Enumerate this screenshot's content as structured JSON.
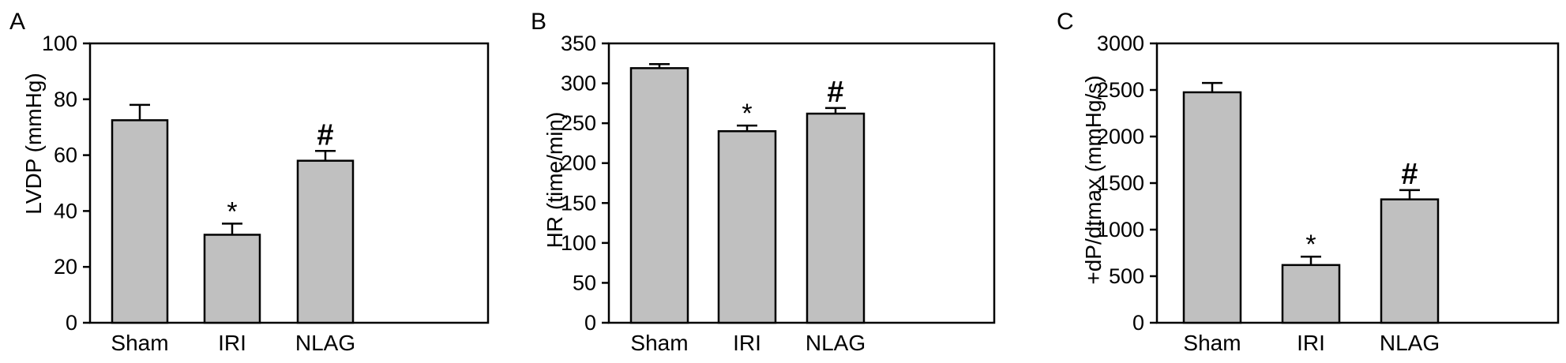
{
  "colors": {
    "bar_fill": "#c0c0c0",
    "stroke": "#000000",
    "background": "#ffffff"
  },
  "chart_data": [
    {
      "type": "bar",
      "panel_label": "A",
      "categories": [
        "Sham",
        "IRI",
        "NLAG"
      ],
      "values": [
        72.5,
        31.5,
        58
      ],
      "error": [
        5.5,
        4.0,
        3.5
      ],
      "significance": [
        "",
        "*",
        "#"
      ],
      "xlabel": "",
      "ylabel": "LVDP (mmHg)",
      "ylim": [
        0,
        100
      ],
      "yticks": [
        0,
        20,
        40,
        60,
        80,
        100
      ],
      "ytick_labels": [
        "0",
        "20",
        "40",
        "60",
        "80",
        "100"
      ],
      "grid": false,
      "legend": "none"
    },
    {
      "type": "bar",
      "panel_label": "B",
      "categories": [
        "Sham",
        "IRI",
        "NLAG"
      ],
      "values": [
        319,
        240,
        262
      ],
      "error": [
        5,
        7,
        7
      ],
      "significance": [
        "",
        "*",
        "#"
      ],
      "xlabel": "",
      "ylabel": "HR (time/min)",
      "ylim": [
        0,
        350
      ],
      "yticks": [
        0,
        50,
        100,
        150,
        200,
        250,
        300,
        350
      ],
      "ytick_labels": [
        "0",
        "50",
        "100",
        "150",
        "200",
        "250",
        "300",
        "350"
      ],
      "grid": false,
      "legend": "none"
    },
    {
      "type": "bar",
      "panel_label": "C",
      "categories": [
        "Sham",
        "IRI",
        "NLAG"
      ],
      "values": [
        2475,
        620,
        1325
      ],
      "error": [
        100,
        90,
        100
      ],
      "significance": [
        "",
        "*",
        "#"
      ],
      "xlabel": "",
      "ylabel": "+dP/dtmax (mmHg/s)",
      "ylim": [
        0,
        3000
      ],
      "yticks": [
        0,
        500,
        1000,
        1500,
        2000,
        2500,
        3000
      ],
      "ytick_labels": [
        "0",
        "500",
        "1000",
        "1500",
        "2000",
        "2500",
        "3000"
      ],
      "grid": false,
      "legend": "none"
    }
  ]
}
